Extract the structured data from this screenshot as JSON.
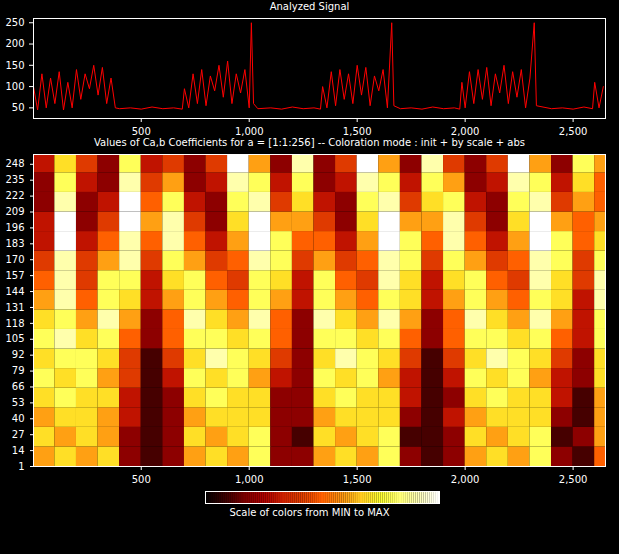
{
  "chart_data": [
    {
      "type": "line",
      "title": "Analyzed Signal",
      "color": "#ff0000",
      "x": [
        1,
        20,
        40,
        60,
        80,
        100,
        120,
        140,
        160,
        180,
        200,
        220,
        240,
        260,
        280,
        300,
        320,
        340,
        360,
        380,
        400,
        450,
        500,
        550,
        600,
        650,
        690,
        700,
        720,
        740,
        760,
        780,
        800,
        820,
        840,
        860,
        880,
        900,
        920,
        940,
        960,
        980,
        1000,
        1010,
        1020,
        1040,
        1100,
        1150,
        1200,
        1250,
        1300,
        1330,
        1340,
        1360,
        1380,
        1400,
        1420,
        1440,
        1460,
        1480,
        1500,
        1520,
        1540,
        1560,
        1580,
        1600,
        1620,
        1640,
        1660,
        1670,
        1700,
        1750,
        1800,
        1850,
        1900,
        1950,
        1975,
        1985,
        2000,
        2020,
        2040,
        2060,
        2080,
        2100,
        2120,
        2140,
        2160,
        2180,
        2200,
        2220,
        2240,
        2260,
        2280,
        2300,
        2320,
        2330,
        2400,
        2450,
        2500,
        2550,
        2590,
        2600,
        2620,
        2640
      ],
      "values": [
        100,
        45,
        130,
        50,
        120,
        60,
        135,
        45,
        110,
        50,
        140,
        70,
        130,
        95,
        150,
        80,
        145,
        60,
        120,
        50,
        48,
        50,
        47,
        52,
        48,
        50,
        47,
        95,
        50,
        130,
        60,
        140,
        55,
        125,
        90,
        150,
        75,
        160,
        60,
        130,
        85,
        140,
        50,
        250,
        60,
        48,
        50,
        47,
        52,
        48,
        50,
        47,
        100,
        50,
        135,
        55,
        140,
        70,
        130,
        60,
        150,
        80,
        145,
        55,
        125,
        90,
        140,
        50,
        250,
        55,
        48,
        50,
        47,
        52,
        48,
        50,
        47,
        110,
        50,
        135,
        60,
        140,
        70,
        145,
        55,
        130,
        85,
        150,
        60,
        135,
        75,
        140,
        50,
        120,
        250,
        55,
        48,
        50,
        47,
        52,
        48,
        110,
        50,
        100
      ],
      "xlim": [
        1,
        2650
      ],
      "ylim": [
        25,
        260
      ],
      "xticks": [
        500,
        1000,
        1500,
        2000,
        2500
      ],
      "yticks": [
        50,
        100,
        150,
        200,
        250
      ]
    },
    {
      "type": "heatmap",
      "title": "Values of Ca,b Coefficients for a = [1:1:256] -- Coloration mode : init + by scale + abs",
      "x_edges": [
        0,
        100,
        200,
        300,
        400,
        500,
        600,
        700,
        800,
        900,
        1000,
        1100,
        1200,
        1300,
        1400,
        1500,
        1600,
        1700,
        1800,
        1900,
        2000,
        2100,
        2200,
        2300,
        2400,
        2500,
        2600,
        2700
      ],
      "y_edges": [
        1,
        17,
        33,
        49,
        65,
        81,
        97,
        113,
        129,
        145,
        161,
        177,
        193,
        209,
        225,
        241,
        257
      ],
      "cells": [
        [
          0.6,
          0.7,
          0.6,
          0.7,
          0.2,
          0.1,
          0.2,
          0.6,
          0.7,
          0.6,
          0.8,
          0.2,
          0.2,
          0.6,
          0.7,
          0.6,
          0.8,
          0.2,
          0.1,
          0.2,
          0.6,
          0.7,
          0.6,
          0.8,
          0.2,
          0.1,
          0.5
        ],
        [
          0.7,
          0.6,
          0.7,
          0.6,
          0.2,
          0.1,
          0.2,
          0.7,
          0.6,
          0.7,
          0.8,
          0.2,
          0.1,
          0.7,
          0.6,
          0.7,
          0.8,
          0.1,
          0.1,
          0.2,
          0.7,
          0.6,
          0.7,
          0.8,
          0.1,
          0.2,
          0.6
        ],
        [
          0.6,
          0.7,
          0.7,
          0.6,
          0.3,
          0.1,
          0.2,
          0.6,
          0.7,
          0.7,
          0.7,
          0.2,
          0.2,
          0.6,
          0.7,
          0.7,
          0.7,
          0.2,
          0.1,
          0.3,
          0.6,
          0.7,
          0.7,
          0.7,
          0.2,
          0.1,
          0.6
        ],
        [
          0.7,
          0.8,
          0.7,
          0.7,
          0.3,
          0.1,
          0.2,
          0.7,
          0.8,
          0.7,
          0.7,
          0.2,
          0.2,
          0.7,
          0.8,
          0.7,
          0.7,
          0.3,
          0.1,
          0.2,
          0.7,
          0.8,
          0.7,
          0.7,
          0.3,
          0.1,
          0.6
        ],
        [
          0.8,
          0.7,
          0.8,
          0.6,
          0.4,
          0.1,
          0.3,
          0.8,
          0.7,
          0.8,
          0.6,
          0.3,
          0.2,
          0.8,
          0.7,
          0.8,
          0.6,
          0.3,
          0.1,
          0.3,
          0.8,
          0.7,
          0.8,
          0.6,
          0.3,
          0.2,
          0.7
        ],
        [
          0.7,
          0.8,
          0.8,
          0.7,
          0.4,
          0.1,
          0.4,
          0.7,
          0.9,
          0.8,
          0.7,
          0.4,
          0.2,
          0.7,
          0.9,
          0.8,
          0.7,
          0.4,
          0.1,
          0.4,
          0.7,
          0.9,
          0.8,
          0.7,
          0.4,
          0.2,
          0.7
        ],
        [
          0.8,
          0.9,
          0.7,
          0.8,
          0.5,
          0.2,
          0.5,
          0.8,
          0.8,
          0.7,
          0.8,
          0.5,
          0.2,
          0.8,
          0.8,
          0.7,
          0.8,
          0.5,
          0.2,
          0.5,
          0.8,
          0.8,
          0.7,
          0.8,
          0.5,
          0.3,
          0.8
        ],
        [
          0.7,
          0.8,
          0.6,
          0.9,
          0.6,
          0.2,
          0.5,
          0.9,
          0.7,
          0.6,
          0.9,
          0.5,
          0.2,
          0.9,
          0.7,
          0.6,
          0.9,
          0.6,
          0.2,
          0.5,
          0.9,
          0.7,
          0.6,
          0.9,
          0.6,
          0.3,
          0.8
        ],
        [
          0.6,
          0.9,
          0.5,
          0.8,
          0.7,
          0.3,
          0.6,
          0.8,
          0.6,
          0.5,
          0.8,
          0.6,
          0.3,
          0.8,
          0.6,
          0.5,
          0.8,
          0.7,
          0.3,
          0.6,
          0.8,
          0.6,
          0.5,
          0.8,
          0.7,
          0.3,
          0.9
        ],
        [
          0.5,
          0.9,
          0.4,
          0.8,
          0.8,
          0.3,
          0.7,
          0.8,
          0.5,
          0.4,
          0.8,
          0.7,
          0.3,
          0.8,
          0.5,
          0.4,
          0.9,
          0.7,
          0.3,
          0.7,
          0.8,
          0.5,
          0.4,
          0.9,
          0.7,
          0.4,
          0.9
        ],
        [
          0.4,
          0.9,
          0.4,
          0.6,
          0.9,
          0.4,
          0.8,
          0.6,
          0.4,
          0.5,
          0.9,
          0.8,
          0.4,
          0.6,
          0.4,
          0.5,
          0.9,
          0.8,
          0.4,
          0.8,
          0.6,
          0.4,
          0.5,
          0.9,
          0.8,
          0.4,
          0.8
        ],
        [
          0.3,
          1.0,
          0.3,
          0.5,
          0.9,
          0.5,
          0.9,
          0.5,
          0.3,
          0.6,
          1.0,
          0.8,
          0.5,
          0.5,
          0.3,
          0.6,
          1.0,
          0.8,
          0.5,
          0.9,
          0.5,
          0.3,
          0.6,
          1.0,
          0.8,
          0.5,
          0.7
        ],
        [
          0.3,
          1.0,
          0.2,
          0.4,
          1.0,
          0.6,
          0.9,
          0.4,
          0.2,
          0.7,
          1.0,
          0.6,
          0.6,
          0.4,
          0.2,
          0.7,
          1.0,
          0.6,
          0.6,
          0.9,
          0.4,
          0.2,
          0.7,
          1.0,
          0.6,
          0.5,
          0.6
        ],
        [
          0.2,
          0.9,
          0.2,
          0.3,
          1.0,
          0.5,
          0.8,
          0.3,
          0.2,
          0.8,
          0.9,
          0.4,
          0.7,
          0.3,
          0.2,
          0.8,
          0.9,
          0.4,
          0.7,
          0.8,
          0.3,
          0.2,
          0.8,
          0.9,
          0.4,
          0.6,
          0.5
        ],
        [
          0.2,
          0.8,
          0.3,
          0.2,
          0.9,
          0.4,
          0.6,
          0.2,
          0.3,
          0.9,
          0.8,
          0.3,
          0.8,
          0.2,
          0.3,
          0.9,
          0.8,
          0.3,
          0.8,
          0.6,
          0.2,
          0.3,
          0.9,
          0.8,
          0.3,
          0.7,
          0.5
        ],
        [
          0.3,
          0.7,
          0.4,
          0.2,
          0.8,
          0.3,
          0.4,
          0.2,
          0.4,
          1.0,
          0.6,
          0.2,
          0.9,
          0.2,
          0.4,
          1.0,
          0.6,
          0.2,
          0.9,
          0.4,
          0.2,
          0.4,
          1.0,
          0.6,
          0.2,
          0.8,
          0.6
        ]
      ],
      "xlim": [
        1,
        2650
      ],
      "ylim": [
        1,
        256
      ],
      "xticks": [
        500,
        1000,
        1500,
        2000,
        2500
      ],
      "yticks": [
        1,
        14,
        27,
        40,
        53,
        66,
        79,
        92,
        105,
        118,
        131,
        144,
        157,
        170,
        183,
        196,
        209,
        222,
        235,
        248
      ],
      "colorbar": {
        "range": [
          0,
          1
        ],
        "label": "Scale of colors from MIN to MAX"
      }
    }
  ]
}
